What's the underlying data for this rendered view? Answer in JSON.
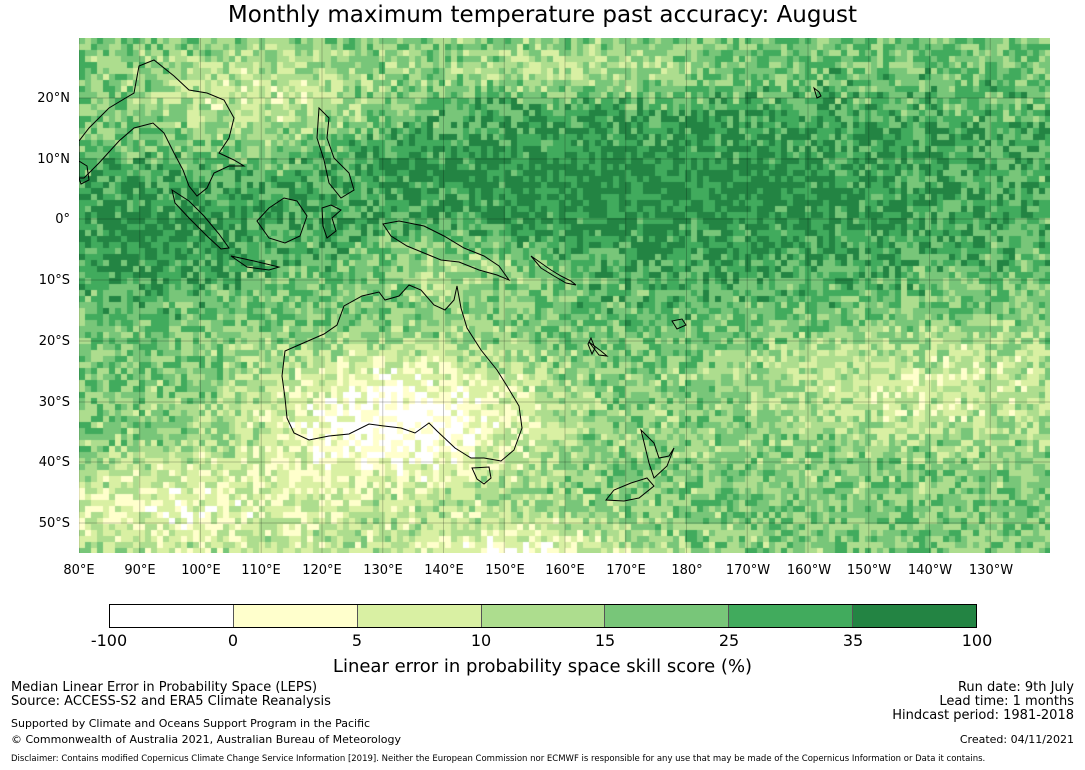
{
  "title": "Monthly maximum temperature past accuracy: August",
  "map": {
    "lat_labels": [
      "20°N",
      "10°N",
      "0°",
      "10°S",
      "20°S",
      "30°S",
      "40°S",
      "50°S"
    ],
    "lon_labels": [
      "80°E",
      "90°E",
      "100°E",
      "110°E",
      "120°E",
      "130°E",
      "140°E",
      "150°E",
      "160°E",
      "170°E",
      "180°",
      "170°W",
      "160°W",
      "150°W",
      "140°W",
      "130°W"
    ]
  },
  "colorbar": {
    "ticks": [
      "-100",
      "0",
      "5",
      "10",
      "15",
      "25",
      "35",
      "100"
    ],
    "colors": [
      "#ffffff",
      "#ffffcc",
      "#d9f0a3",
      "#addd8e",
      "#78c679",
      "#41ab5d",
      "#238443"
    ],
    "label": "Linear error in probability space skill score (%)"
  },
  "footer": {
    "method": "Median Linear Error in Probability Space (LEPS)",
    "source": "Source: ACCESS-S2 and ERA5 Climate Reanalysis",
    "support": "Supported by Climate and Oceans Support Program in the Pacific",
    "copyright": "© Commonwealth of Australia 2021, Australian Bureau of Meteorology",
    "run_date": "Run date: 9th July",
    "lead_time": "Lead time: 1 months",
    "hindcast": "Hindcast period: 1981-2018",
    "created": "Created: 04/11/2021",
    "disclaimer": "Disclaimer: Contains modified Copernicus Climate Change Service Information [2019]. Neither the European Commission nor ECMWF is responsible for any use that may be made of the Copernicus Information or Data it contains."
  }
}
